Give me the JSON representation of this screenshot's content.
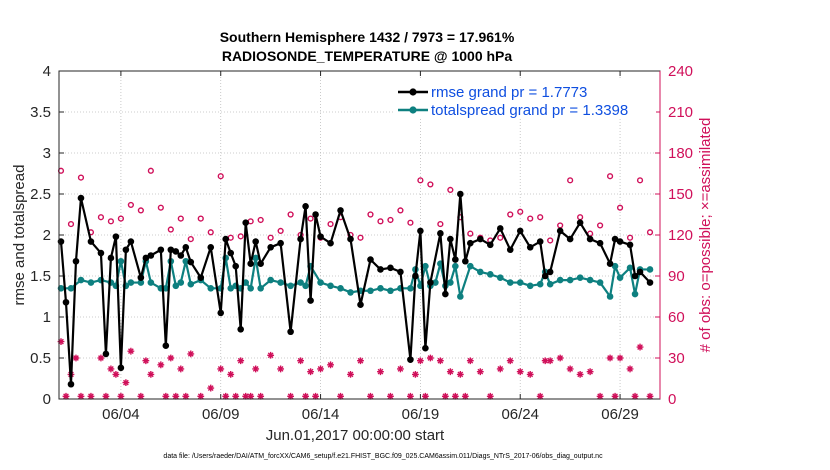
{
  "chart_data": {
    "type": "line",
    "title_line1": "Southern Hemisphere 1432 / 7973 = 17.961%",
    "title_line2": "RADIOSONDE_TEMPERATURE @ 1000 hPa",
    "xlabel": "Jun.01,2017 00:00:00 start",
    "ylabel": "rmse and totalspread",
    "ylabel_right": "# of obs: o=possible; ×=assimilated",
    "xlim": [
      0.9,
      31.0
    ],
    "ylim": [
      0,
      4
    ],
    "ylim_right": [
      0,
      240
    ],
    "x_ticks": [
      4,
      9,
      14,
      19,
      24,
      29
    ],
    "x_tick_labels": [
      "06/04",
      "06/09",
      "06/14",
      "06/19",
      "06/24",
      "06/29"
    ],
    "y_ticks": [
      0,
      0.5,
      1,
      1.5,
      2,
      2.5,
      3,
      3.5,
      4
    ],
    "y_tick_labels": [
      "0",
      "0.5",
      "1",
      "1.5",
      "2",
      "2.5",
      "3",
      "3.5",
      "4"
    ],
    "y_ticks_right": [
      0,
      30,
      60,
      90,
      120,
      150,
      180,
      210,
      240
    ],
    "y_tick_labels_right": [
      "0",
      "30",
      "60",
      "90",
      "120",
      "150",
      "180",
      "210",
      "240"
    ],
    "legend_rmse": "rmse grand pr = 1.7773",
    "legend_spread": "totalspread grand pr = 1.3398",
    "footer": "data file: /Users/raeder/DAI/ATM_forcXX/CAM6_setup/f.e21.FHIST_BGC.f09_025.CAM6assim.011/Diags_NTrS_2017-06/obs_diag_output.nc",
    "colors": {
      "rmse": "#000000",
      "spread": "#0e8080",
      "obs": "#d0105a",
      "legend_text": "#0f4fe0"
    },
    "series": [
      {
        "name": "rmse",
        "x": [
          1.0,
          1.25,
          1.5,
          1.75,
          2.0,
          2.5,
          3.0,
          3.25,
          3.5,
          3.75,
          4.0,
          4.25,
          4.5,
          5.0,
          5.25,
          5.5,
          6.0,
          6.25,
          6.5,
          6.75,
          7.0,
          7.25,
          7.5,
          8.0,
          8.5,
          9.0,
          9.25,
          9.5,
          9.75,
          10.0,
          10.25,
          10.5,
          10.75,
          11.0,
          11.5,
          12.0,
          12.5,
          13.0,
          13.25,
          13.5,
          13.75,
          14.0,
          14.5,
          15.0,
          15.5,
          16.0,
          16.5,
          17.0,
          17.5,
          18.0,
          18.5,
          18.75,
          19.0,
          19.25,
          19.5,
          20.0,
          20.25,
          20.5,
          20.75,
          21.0,
          21.25,
          21.5,
          22.0,
          22.5,
          23.0,
          23.5,
          24.0,
          24.5,
          25.0,
          25.25,
          25.5,
          26.0,
          26.5,
          27.0,
          27.5,
          28.0,
          28.5,
          28.75,
          29.0,
          29.5,
          29.75,
          30.0,
          30.5
        ],
        "values": [
          1.92,
          1.18,
          0.18,
          1.68,
          2.45,
          1.92,
          1.78,
          0.55,
          1.72,
          1.98,
          0.38,
          1.82,
          1.92,
          1.48,
          1.72,
          1.75,
          1.82,
          0.65,
          1.82,
          1.8,
          1.75,
          1.85,
          1.67,
          1.48,
          1.85,
          1.05,
          1.95,
          1.78,
          1.62,
          0.85,
          2.15,
          1.65,
          1.92,
          1.65,
          1.85,
          1.9,
          0.82,
          1.95,
          2.35,
          1.2,
          2.25,
          1.98,
          1.9,
          2.3,
          1.95,
          1.15,
          1.7,
          1.58,
          1.6,
          1.55,
          0.48,
          1.5,
          2.05,
          0.62,
          1.42,
          2.02,
          1.28,
          1.95,
          1.7,
          2.5,
          1.68,
          1.9,
          1.95,
          1.88,
          2.08,
          1.82,
          2.05,
          1.85,
          1.92,
          1.5,
          1.55,
          2.05,
          1.95,
          2.15,
          1.95,
          1.9,
          1.65,
          1.95,
          1.92,
          1.88,
          1.5,
          1.55,
          1.42
        ]
      },
      {
        "name": "totalspread",
        "x": [
          1.0,
          1.5,
          2.0,
          2.5,
          3.0,
          3.5,
          3.75,
          4.0,
          4.25,
          4.5,
          5.0,
          5.25,
          5.5,
          6.0,
          6.25,
          6.5,
          6.75,
          7.0,
          7.25,
          7.5,
          8.0,
          8.5,
          9.0,
          9.25,
          9.5,
          9.75,
          10.0,
          10.25,
          10.5,
          10.75,
          11.0,
          11.5,
          12.0,
          12.5,
          13.0,
          13.25,
          13.5,
          14.0,
          14.5,
          15.0,
          15.5,
          16.0,
          16.5,
          17.0,
          17.5,
          18.0,
          18.5,
          18.75,
          19.0,
          19.25,
          19.5,
          19.75,
          20.0,
          20.25,
          20.5,
          20.75,
          21.0,
          21.5,
          22.0,
          22.5,
          23.0,
          23.5,
          24.0,
          24.5,
          25.0,
          25.25,
          25.5,
          26.0,
          26.5,
          27.0,
          27.5,
          28.0,
          28.5,
          28.75,
          29.0,
          29.5,
          29.75,
          30.0,
          30.5
        ],
        "values": [
          1.35,
          1.35,
          1.45,
          1.42,
          1.45,
          1.42,
          1.38,
          1.68,
          1.38,
          1.42,
          1.42,
          1.68,
          1.42,
          1.35,
          1.35,
          1.68,
          1.38,
          1.42,
          1.68,
          1.4,
          1.45,
          1.35,
          1.35,
          1.72,
          1.35,
          1.38,
          1.35,
          1.42,
          1.35,
          1.72,
          1.35,
          1.45,
          1.42,
          1.38,
          1.42,
          1.38,
          1.62,
          1.42,
          1.38,
          1.35,
          1.3,
          1.32,
          1.32,
          1.35,
          1.32,
          1.35,
          1.35,
          1.58,
          1.38,
          1.62,
          1.38,
          1.42,
          1.65,
          1.38,
          1.42,
          1.62,
          1.25,
          1.62,
          1.55,
          1.52,
          1.48,
          1.42,
          1.42,
          1.38,
          1.4,
          1.55,
          1.4,
          1.45,
          1.45,
          1.48,
          1.45,
          1.42,
          1.25,
          1.62,
          1.48,
          1.6,
          1.28,
          1.58,
          1.58
        ]
      },
      {
        "name": "obs_possible",
        "x": [
          1.0,
          1.5,
          2.0,
          2.5,
          3.0,
          3.5,
          4.0,
          4.5,
          5.0,
          5.5,
          6.0,
          6.5,
          7.0,
          7.5,
          8.0,
          8.5,
          9.0,
          9.5,
          10.0,
          10.5,
          11.0,
          11.5,
          12.0,
          12.5,
          13.0,
          13.5,
          14.0,
          14.5,
          15.0,
          15.5,
          16.0,
          16.5,
          17.0,
          17.5,
          18.0,
          18.5,
          19.0,
          19.5,
          20.0,
          20.5,
          21.0,
          21.5,
          22.0,
          22.5,
          23.0,
          23.5,
          24.0,
          24.5,
          25.0,
          25.5,
          26.0,
          26.5,
          27.0,
          27.5,
          28.0,
          28.5,
          29.0,
          29.5,
          30.0,
          30.5
        ],
        "values": [
          167,
          128,
          162,
          122,
          133,
          130,
          132,
          142,
          138,
          167,
          140,
          124,
          132,
          117,
          132,
          122,
          163,
          118,
          119,
          130,
          131,
          118,
          123,
          135,
          120,
          132,
          118,
          128,
          133,
          120,
          118,
          135,
          130,
          131,
          138,
          129,
          160,
          157,
          128,
          153,
          133,
          121,
          118,
          116,
          118,
          135,
          137,
          132,
          133,
          116,
          127,
          160,
          133,
          121,
          127,
          163,
          140,
          118,
          160,
          122
        ]
      },
      {
        "name": "obs_assimilated",
        "x": [
          1.0,
          1.25,
          1.5,
          1.75,
          2.0,
          2.5,
          3.0,
          3.25,
          3.5,
          3.75,
          4.0,
          4.25,
          4.5,
          5.0,
          5.25,
          5.5,
          6.0,
          6.25,
          6.5,
          6.75,
          7.0,
          7.25,
          7.5,
          8.0,
          8.5,
          9.0,
          9.25,
          9.5,
          9.75,
          10.0,
          10.25,
          10.5,
          10.75,
          11.0,
          11.5,
          12.0,
          12.5,
          13.0,
          13.25,
          13.5,
          13.75,
          14.0,
          14.5,
          15.0,
          15.5,
          16.0,
          16.5,
          17.0,
          17.5,
          18.0,
          18.5,
          18.75,
          19.0,
          19.25,
          19.5,
          20.0,
          20.25,
          20.5,
          20.75,
          21.0,
          21.25,
          21.5,
          22.0,
          22.5,
          23.0,
          23.5,
          24.0,
          24.5,
          25.0,
          25.25,
          25.5,
          26.0,
          26.5,
          27.0,
          27.5,
          28.0,
          28.5,
          28.75,
          29.0,
          29.5,
          29.75,
          30.0,
          30.5
        ],
        "values": [
          42,
          2,
          18,
          30,
          2,
          2,
          30,
          2,
          22,
          18,
          2,
          12,
          35,
          2,
          28,
          18,
          25,
          2,
          30,
          2,
          22,
          2,
          33,
          2,
          8,
          22,
          2,
          18,
          2,
          28,
          2,
          2,
          22,
          2,
          32,
          22,
          2,
          28,
          2,
          20,
          2,
          22,
          25,
          2,
          18,
          28,
          2,
          20,
          2,
          22,
          2,
          18,
          28,
          2,
          30,
          28,
          2,
          20,
          2,
          18,
          2,
          28,
          20,
          2,
          22,
          28,
          20,
          18,
          2,
          28,
          28,
          30,
          22,
          18,
          20,
          2,
          30,
          2,
          30,
          22,
          2,
          38,
          2
        ]
      }
    ]
  }
}
